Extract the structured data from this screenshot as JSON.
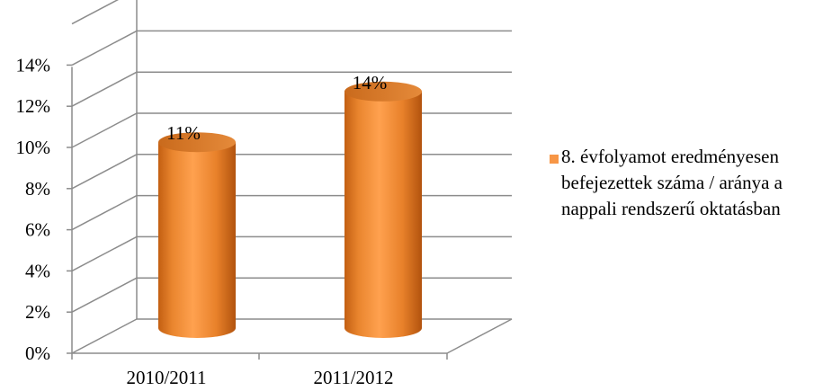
{
  "chart_data": {
    "type": "bar",
    "style": "3d-cylinder",
    "categories": [
      "2010/2011",
      "2011/2012"
    ],
    "series": [
      {
        "name": "8. évfolyamot eredményesen befejezettek száma / aránya a nappali rendszerű oktatásban",
        "values": [
          11,
          14
        ],
        "labels": [
          "11%",
          "14%"
        ],
        "color": "#F79646"
      }
    ],
    "yticks": [
      "0%",
      "2%",
      "4%",
      "6%",
      "8%",
      "10%",
      "12%",
      "14%"
    ],
    "ylim": [
      0,
      16
    ],
    "grid": true,
    "legend_position": "right"
  }
}
